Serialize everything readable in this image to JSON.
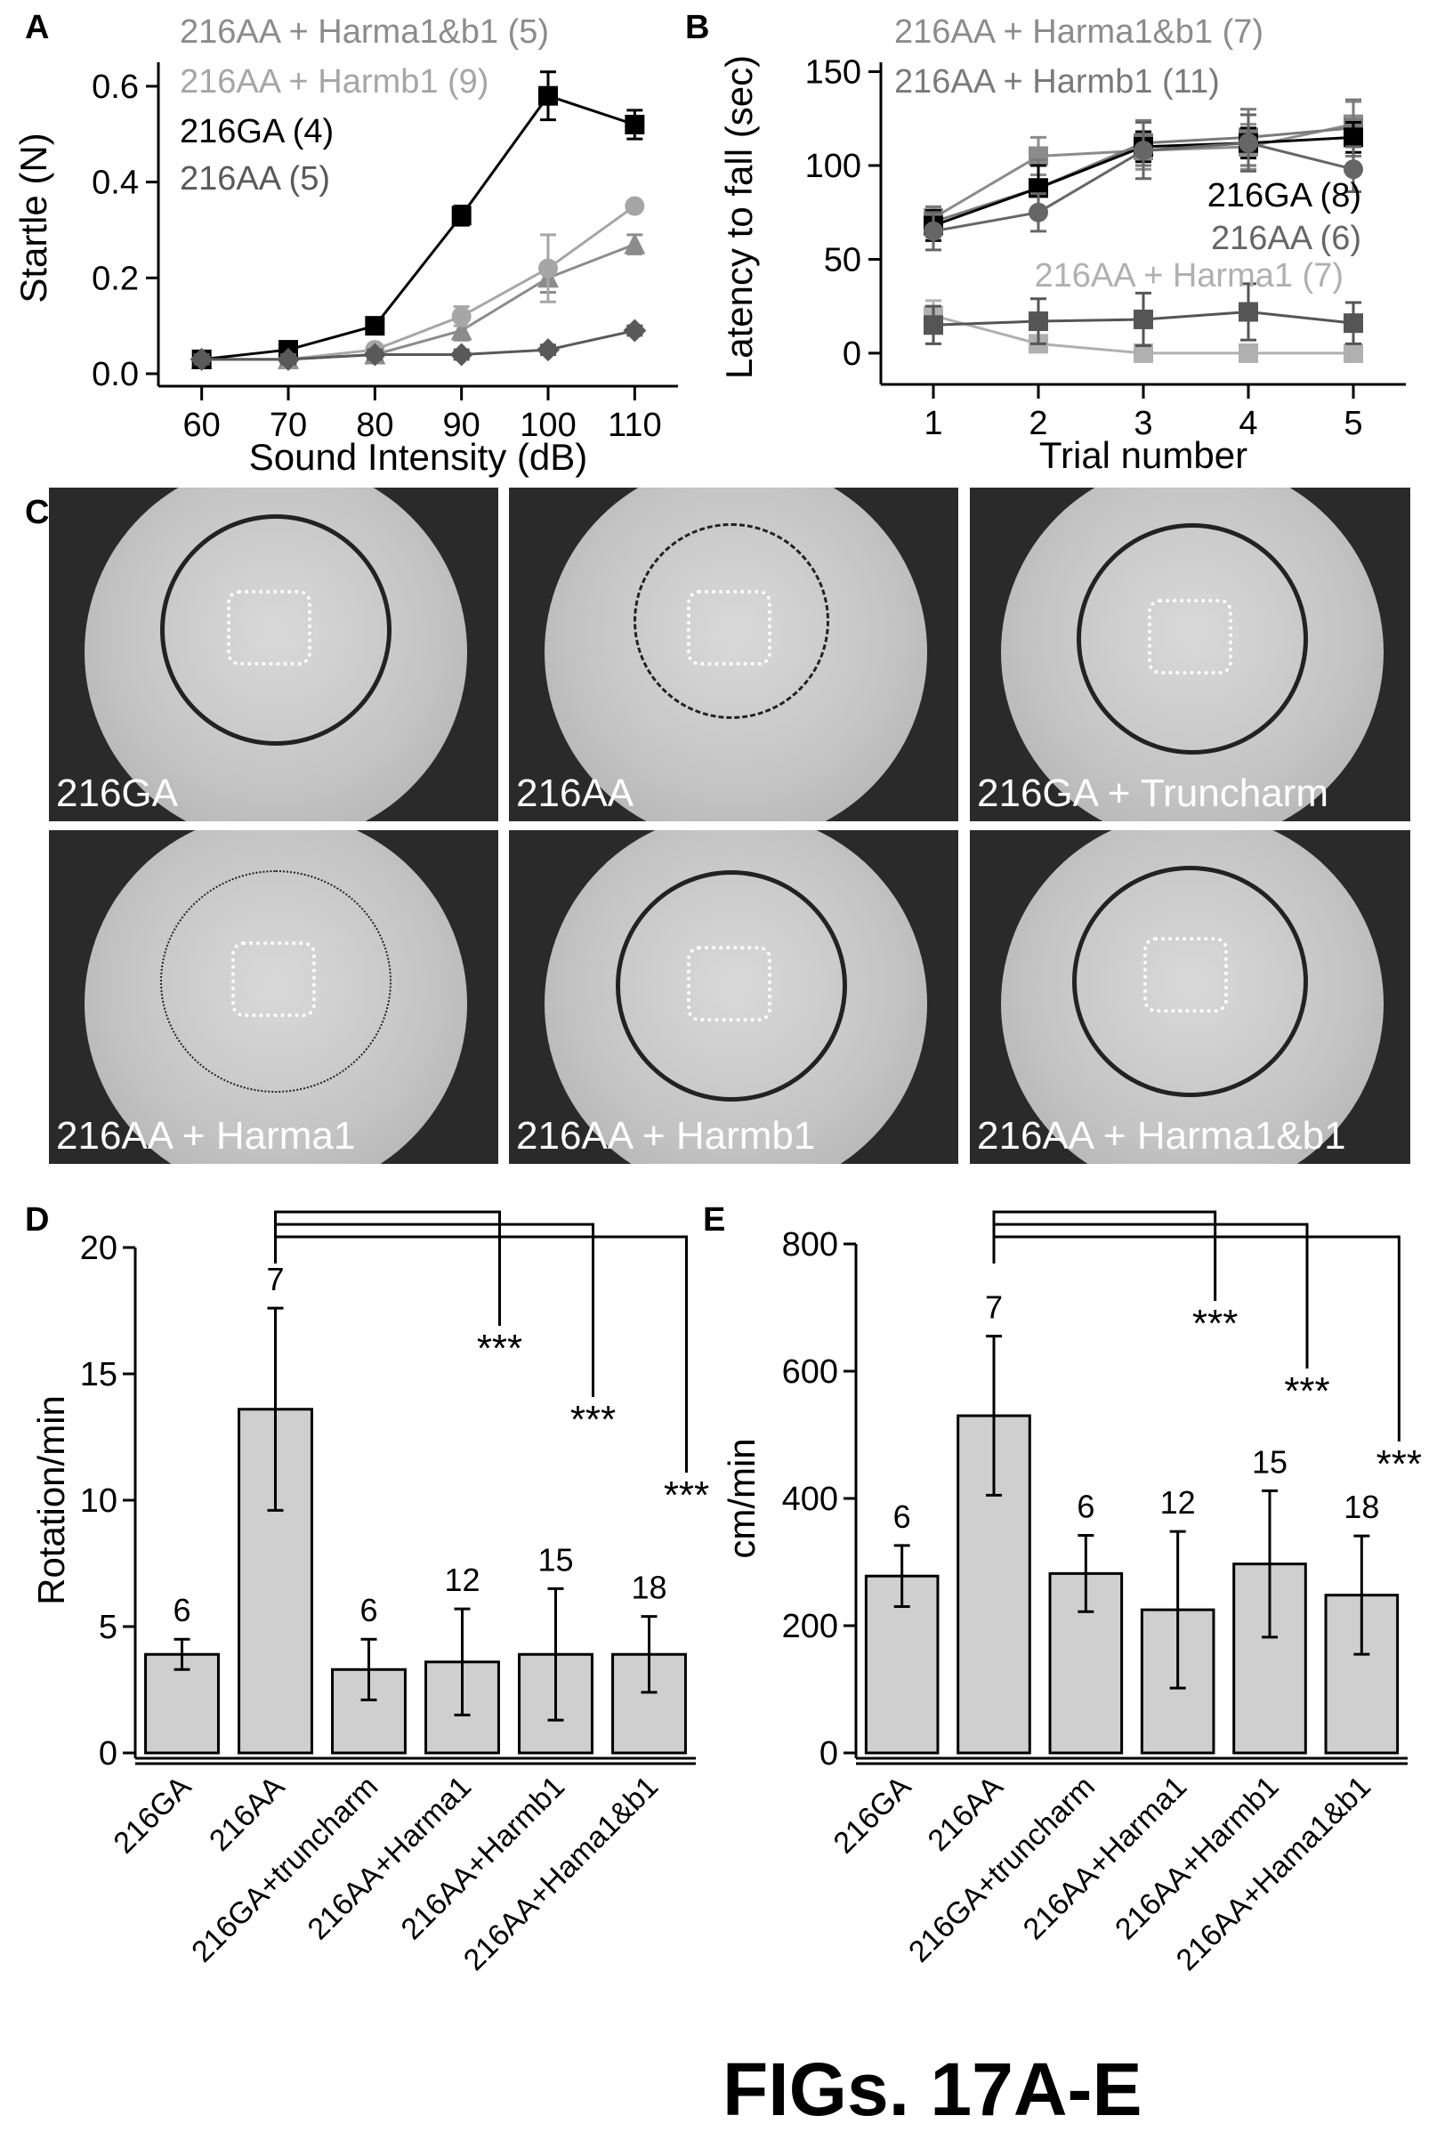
{
  "figure_title": "FIGs. 17A-E",
  "panels": {
    "a": {
      "letter": "A"
    },
    "b": {
      "letter": "B"
    },
    "c": {
      "letter": "C"
    },
    "d": {
      "letter": "D"
    },
    "e": {
      "letter": "E"
    }
  },
  "photos": [
    {
      "caption": "216GA",
      "track": "periphery"
    },
    {
      "caption": "216AA",
      "track": "center"
    },
    {
      "caption": "216GA + Truncharm",
      "track": "periphery"
    },
    {
      "caption": "216AA + Harma1",
      "track": "sparse"
    },
    {
      "caption": "216AA + Harmb1",
      "track": "periphery"
    },
    {
      "caption": "216AA + Harma1&b1",
      "track": "periphery"
    }
  ],
  "chart_data": [
    {
      "id": "A",
      "type": "line",
      "xlabel": "Sound Intensity (dB)",
      "ylabel": "Startle (N)",
      "x": [
        60,
        70,
        80,
        90,
        100,
        110
      ],
      "xticks": [
        "60",
        "70",
        "80",
        "90",
        "100",
        "110"
      ],
      "ylim": [
        0,
        0.65
      ],
      "yticks": [
        "0.0",
        "0.2",
        "0.4",
        "0.6"
      ],
      "series": [
        {
          "name": "216AA + Harma1&b1 (5)",
          "color": "#8c8c8c",
          "marker": "triangle",
          "values": [
            0.03,
            0.03,
            0.04,
            0.09,
            0.2,
            0.27
          ],
          "err": [
            0.01,
            0.01,
            0.01,
            0.02,
            0.03,
            0.02
          ]
        },
        {
          "name": "216AA + Harmb1 (9)",
          "color": "#a6a6a6",
          "marker": "circle",
          "values": [
            0.03,
            0.03,
            0.05,
            0.12,
            0.22,
            0.35
          ],
          "err": [
            0.01,
            0.01,
            0.01,
            0.02,
            0.07,
            0.01
          ]
        },
        {
          "name": "216GA (4)",
          "color": "#000000",
          "marker": "square",
          "values": [
            0.03,
            0.05,
            0.1,
            0.33,
            0.58,
            0.52
          ],
          "err": [
            0.01,
            0.01,
            0.01,
            0.02,
            0.05,
            0.03
          ]
        },
        {
          "name": "216AA (5)",
          "color": "#595959",
          "marker": "diamond",
          "values": [
            0.03,
            0.03,
            0.04,
            0.04,
            0.05,
            0.09
          ],
          "err": [
            0.01,
            0.01,
            0.01,
            0.01,
            0.01,
            0.01
          ]
        }
      ]
    },
    {
      "id": "B",
      "type": "line",
      "xlabel": "Trial number",
      "ylabel": "Latency to fall (sec)",
      "x": [
        1,
        2,
        3,
        4,
        5
      ],
      "xticks": [
        "1",
        "2",
        "3",
        "4",
        "5"
      ],
      "ylim": [
        -10,
        155
      ],
      "yticks": [
        "0",
        "50",
        "100",
        "150"
      ],
      "series": [
        {
          "name": "216AA + Harma1&b1 (7)",
          "color": "#8c8c8c",
          "marker": "square",
          "values": [
            72,
            105,
            108,
            110,
            122
          ],
          "err": [
            6,
            10,
            10,
            12,
            12
          ]
        },
        {
          "name": "216AA + Harmb1 (11)",
          "color": "#7a7a7a",
          "marker": "square",
          "values": [
            70,
            88,
            112,
            115,
            120
          ],
          "err": [
            8,
            15,
            12,
            15,
            15
          ]
        },
        {
          "name": "216GA (8)",
          "color": "#000000",
          "marker": "square",
          "values": [
            68,
            88,
            110,
            112,
            115
          ],
          "err": [
            8,
            12,
            8,
            8,
            8
          ]
        },
        {
          "name": "216AA (6)",
          "color": "#666666",
          "marker": "circle",
          "values": [
            65,
            75,
            108,
            112,
            98
          ],
          "err": [
            10,
            10,
            15,
            15,
            12
          ]
        },
        {
          "name": "216AA + Harma1 (7)",
          "color": "#b0b0b0",
          "marker": "square",
          "values": [
            20,
            5,
            0,
            0,
            0
          ],
          "err": [
            8,
            3,
            2,
            2,
            2
          ]
        },
        {
          "name": "216AA",
          "color": "#555555",
          "marker": "square",
          "values": [
            15,
            17,
            18,
            22,
            16
          ],
          "err": [
            10,
            12,
            14,
            15,
            11
          ]
        }
      ]
    },
    {
      "id": "D",
      "type": "bar",
      "ylabel": "Rotation/min",
      "categories": [
        "216GA",
        "216AA",
        "216GA+truncharm",
        "216AA+Harma1",
        "216AA+Harmb1",
        "216AA+Hama1&b1"
      ],
      "values": [
        3.9,
        13.6,
        3.3,
        3.6,
        3.9,
        3.9
      ],
      "err": [
        0.6,
        4.0,
        1.2,
        2.1,
        2.6,
        1.5
      ],
      "n_labels": [
        "6",
        "7",
        "6",
        "12",
        "15",
        "18"
      ],
      "ylim": [
        0,
        20
      ],
      "yticks": [
        "0",
        "5",
        "10",
        "15",
        "20"
      ],
      "significance": [
        {
          "from": "216AA",
          "to": "216AA+Harma1",
          "label": "***"
        },
        {
          "from": "216AA",
          "to": "216AA+Harmb1",
          "label": "***"
        },
        {
          "from": "216AA",
          "to": "216AA+Hama1&b1",
          "label": "***"
        }
      ]
    },
    {
      "id": "E",
      "type": "bar",
      "ylabel": "cm/min",
      "categories": [
        "216GA",
        "216AA",
        "216GA+truncharm",
        "216AA+Harma1",
        "216AA+Harmb1",
        "216AA+Hama1&b1"
      ],
      "values": [
        278,
        530,
        282,
        225,
        297,
        248
      ],
      "err": [
        48,
        125,
        60,
        123,
        115,
        93
      ],
      "n_labels": [
        "6",
        "7",
        "6",
        "12",
        "15",
        "18"
      ],
      "ylim": [
        0,
        800
      ],
      "yticks": [
        "0",
        "200",
        "400",
        "600",
        "800"
      ],
      "significance": [
        {
          "from": "216AA",
          "to": "216AA+Harma1",
          "label": "***"
        },
        {
          "from": "216AA",
          "to": "216AA+Harmb1",
          "label": "***"
        },
        {
          "from": "216AA",
          "to": "216AA+Hama1&b1",
          "label": "***"
        }
      ]
    }
  ]
}
